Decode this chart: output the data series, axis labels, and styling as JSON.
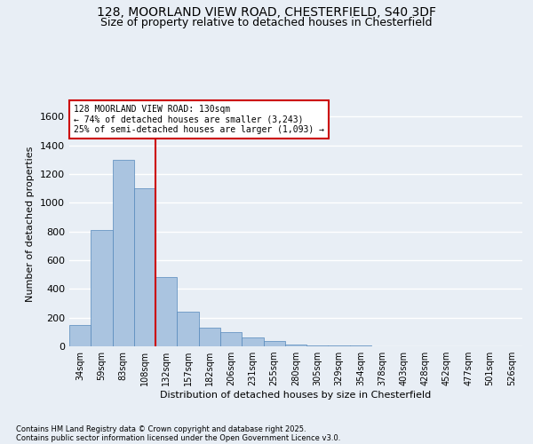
{
  "title_line1": "128, MOORLAND VIEW ROAD, CHESTERFIELD, S40 3DF",
  "title_line2": "Size of property relative to detached houses in Chesterfield",
  "xlabel": "Distribution of detached houses by size in Chesterfield",
  "ylabel": "Number of detached properties",
  "categories": [
    "34sqm",
    "59sqm",
    "83sqm",
    "108sqm",
    "132sqm",
    "157sqm",
    "182sqm",
    "206sqm",
    "231sqm",
    "255sqm",
    "280sqm",
    "305sqm",
    "329sqm",
    "354sqm",
    "378sqm",
    "403sqm",
    "428sqm",
    "452sqm",
    "477sqm",
    "501sqm",
    "526sqm"
  ],
  "values": [
    150,
    810,
    1300,
    1100,
    480,
    240,
    130,
    100,
    60,
    40,
    15,
    5,
    5,
    5,
    0,
    0,
    0,
    0,
    0,
    0,
    0
  ],
  "bar_color": "#aac4e0",
  "bar_edge_color": "#5588bb",
  "background_color": "#e8eef5",
  "grid_color": "#ffffff",
  "annotation_line_label": "128 MOORLAND VIEW ROAD: 130sqm",
  "annotation_left": "← 74% of detached houses are smaller (3,243)",
  "annotation_right": "25% of semi-detached houses are larger (1,093) →",
  "annotation_box_color": "#ffffff",
  "annotation_box_edge_color": "#cc0000",
  "vline_color": "#cc0000",
  "vline_x": 3.5,
  "ylim": [
    0,
    1700
  ],
  "yticks": [
    0,
    200,
    400,
    600,
    800,
    1000,
    1200,
    1400,
    1600
  ],
  "footer_line1": "Contains HM Land Registry data © Crown copyright and database right 2025.",
  "footer_line2": "Contains public sector information licensed under the Open Government Licence v3.0."
}
